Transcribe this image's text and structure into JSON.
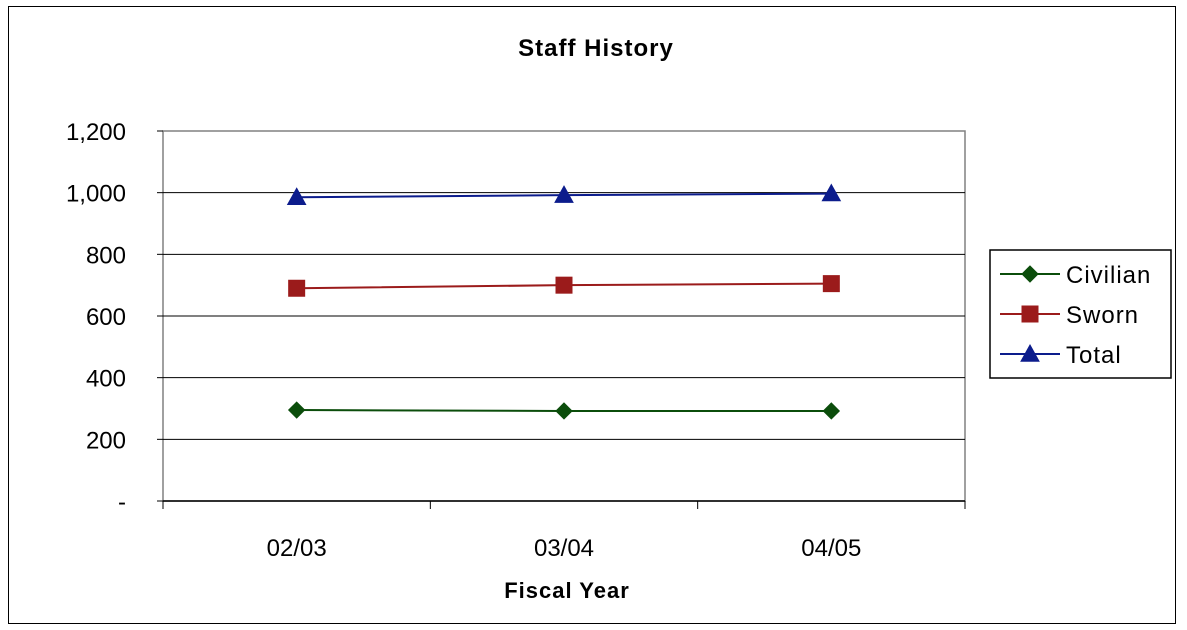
{
  "chart_data": {
    "type": "line",
    "title": "Staff History",
    "xlabel": "Fiscal Year",
    "ylabel": "",
    "categories": [
      "02/03",
      "03/04",
      "04/05"
    ],
    "ylim": [
      0,
      1200
    ],
    "yticks": [
      0,
      200,
      400,
      600,
      800,
      1000,
      1200
    ],
    "ytick_labels": [
      "-",
      "200",
      "400",
      "600",
      "800",
      "1,000",
      "1,200"
    ],
    "grid": true,
    "legend_position": "right",
    "series": [
      {
        "name": "Civilian",
        "values": [
          295,
          292,
          292
        ],
        "color": "#0b4d0b",
        "marker": "diamond"
      },
      {
        "name": "Sworn",
        "values": [
          690,
          700,
          705
        ],
        "color": "#9b1b1b",
        "marker": "square"
      },
      {
        "name": "Total",
        "values": [
          985,
          992,
          997
        ],
        "color": "#0c1c8c",
        "marker": "triangle"
      }
    ]
  }
}
